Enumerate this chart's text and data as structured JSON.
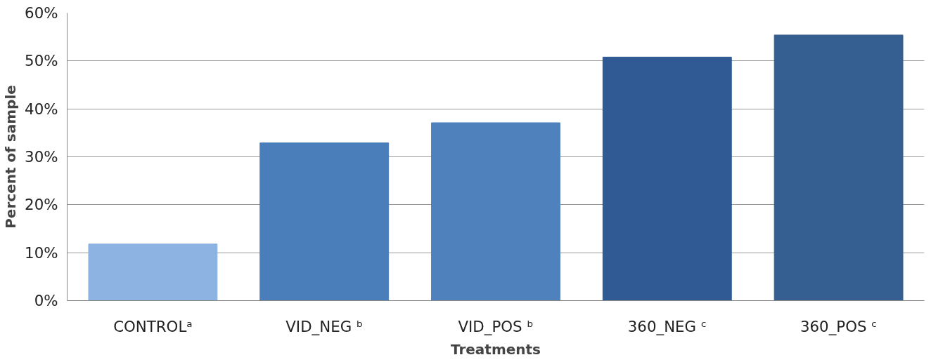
{
  "chart_data": {
    "type": "bar",
    "xlabel": "Treatments",
    "ylabel": "Percent of sample",
    "categories": [
      "CONTROLᵃ",
      "VID_NEG ᵇ",
      "VID_POS ᵇ",
      "360_NEG ᶜ",
      "360_POS ᶜ"
    ],
    "values": [
      11.8,
      32.9,
      37.1,
      50.8,
      55.4
    ],
    "colors": [
      "#8db3e2",
      "#4a7ebb",
      "#4f81bd",
      "#2f5a93",
      "#365f91"
    ],
    "ylim": [
      0,
      60
    ],
    "yticks": [
      {
        "value": 0,
        "label": "0%"
      },
      {
        "value": 10,
        "label": "10%"
      },
      {
        "value": 20,
        "label": "20%"
      },
      {
        "value": 30,
        "label": "30%"
      },
      {
        "value": 40,
        "label": "40%"
      },
      {
        "value": 50,
        "label": "50%"
      },
      {
        "value": 60,
        "label": "60%"
      }
    ],
    "grid": "y"
  }
}
